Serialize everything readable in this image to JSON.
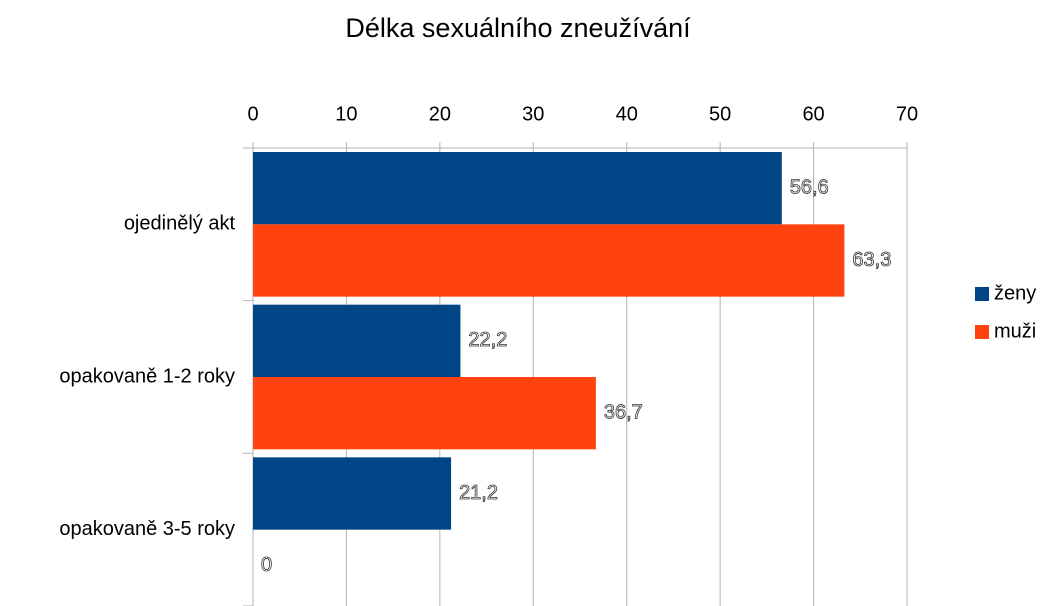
{
  "chart_data": {
    "type": "hbar",
    "title": "Délka sexuálního zneužívání",
    "categories": [
      "ojedinělý akt",
      "opakovaně 1-2 roky",
      "opakovaně 3-5 roky"
    ],
    "series": [
      {
        "name": "ženy",
        "color": "#004586",
        "values": [
          56.6,
          22.2,
          21.2
        ],
        "value_labels": [
          "56,6",
          "22,2",
          "21,2"
        ]
      },
      {
        "name": "muži",
        "color": "#ff420e",
        "values": [
          63.3,
          36.7,
          0
        ],
        "value_labels": [
          "63,3",
          "36,7",
          "0"
        ]
      }
    ],
    "xlim": [
      0,
      70
    ],
    "xticks": [
      0,
      10,
      20,
      30,
      40,
      50,
      60,
      70
    ],
    "grid": true,
    "legend": "right"
  }
}
